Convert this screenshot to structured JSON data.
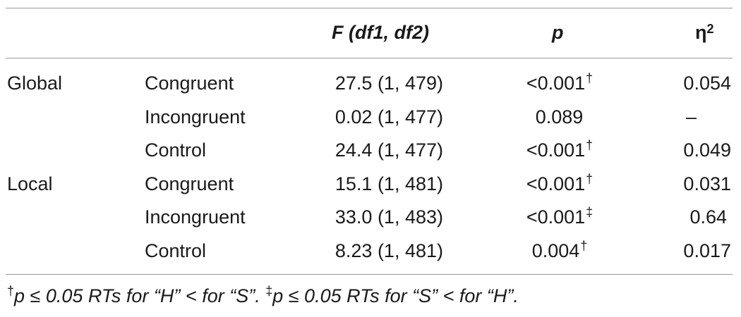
{
  "table": {
    "headers": {
      "f": "F (df1, df2)",
      "p": "p",
      "eta": "η",
      "eta_sup": "2"
    },
    "rows": [
      {
        "group": "Global",
        "condition": "Congruent",
        "f": "27.5 (1, 479)",
        "p": "<0.001",
        "p_mark": "†",
        "eta": "0.054"
      },
      {
        "group": "",
        "condition": "Incongruent",
        "f": "0.02 (1, 477)",
        "p": "0.089",
        "p_mark": "",
        "eta": "–"
      },
      {
        "group": "",
        "condition": "Control",
        "f": "24.4 (1, 477)",
        "p": "<0.001",
        "p_mark": "†",
        "eta": "0.049"
      },
      {
        "group": "Local",
        "condition": "Congruent",
        "f": "15.1 (1, 481)",
        "p": "<0.001",
        "p_mark": "†",
        "eta": "0.031"
      },
      {
        "group": "",
        "condition": "Incongruent",
        "f": "33.0 (1, 483)",
        "p": "<0.001",
        "p_mark": "‡",
        "eta": "0.64"
      },
      {
        "group": "",
        "condition": "Control",
        "f": "8.23 (1, 481)",
        "p": "0.004",
        "p_mark": "†",
        "eta": "0.017"
      }
    ],
    "footnote": {
      "mark1": "†",
      "text1": "p ≤ 0.05 RTs for “H” < for “S”. ",
      "mark2": "‡",
      "text2": "p ≤ 0.05 RTs for “S” < for “H”."
    }
  }
}
